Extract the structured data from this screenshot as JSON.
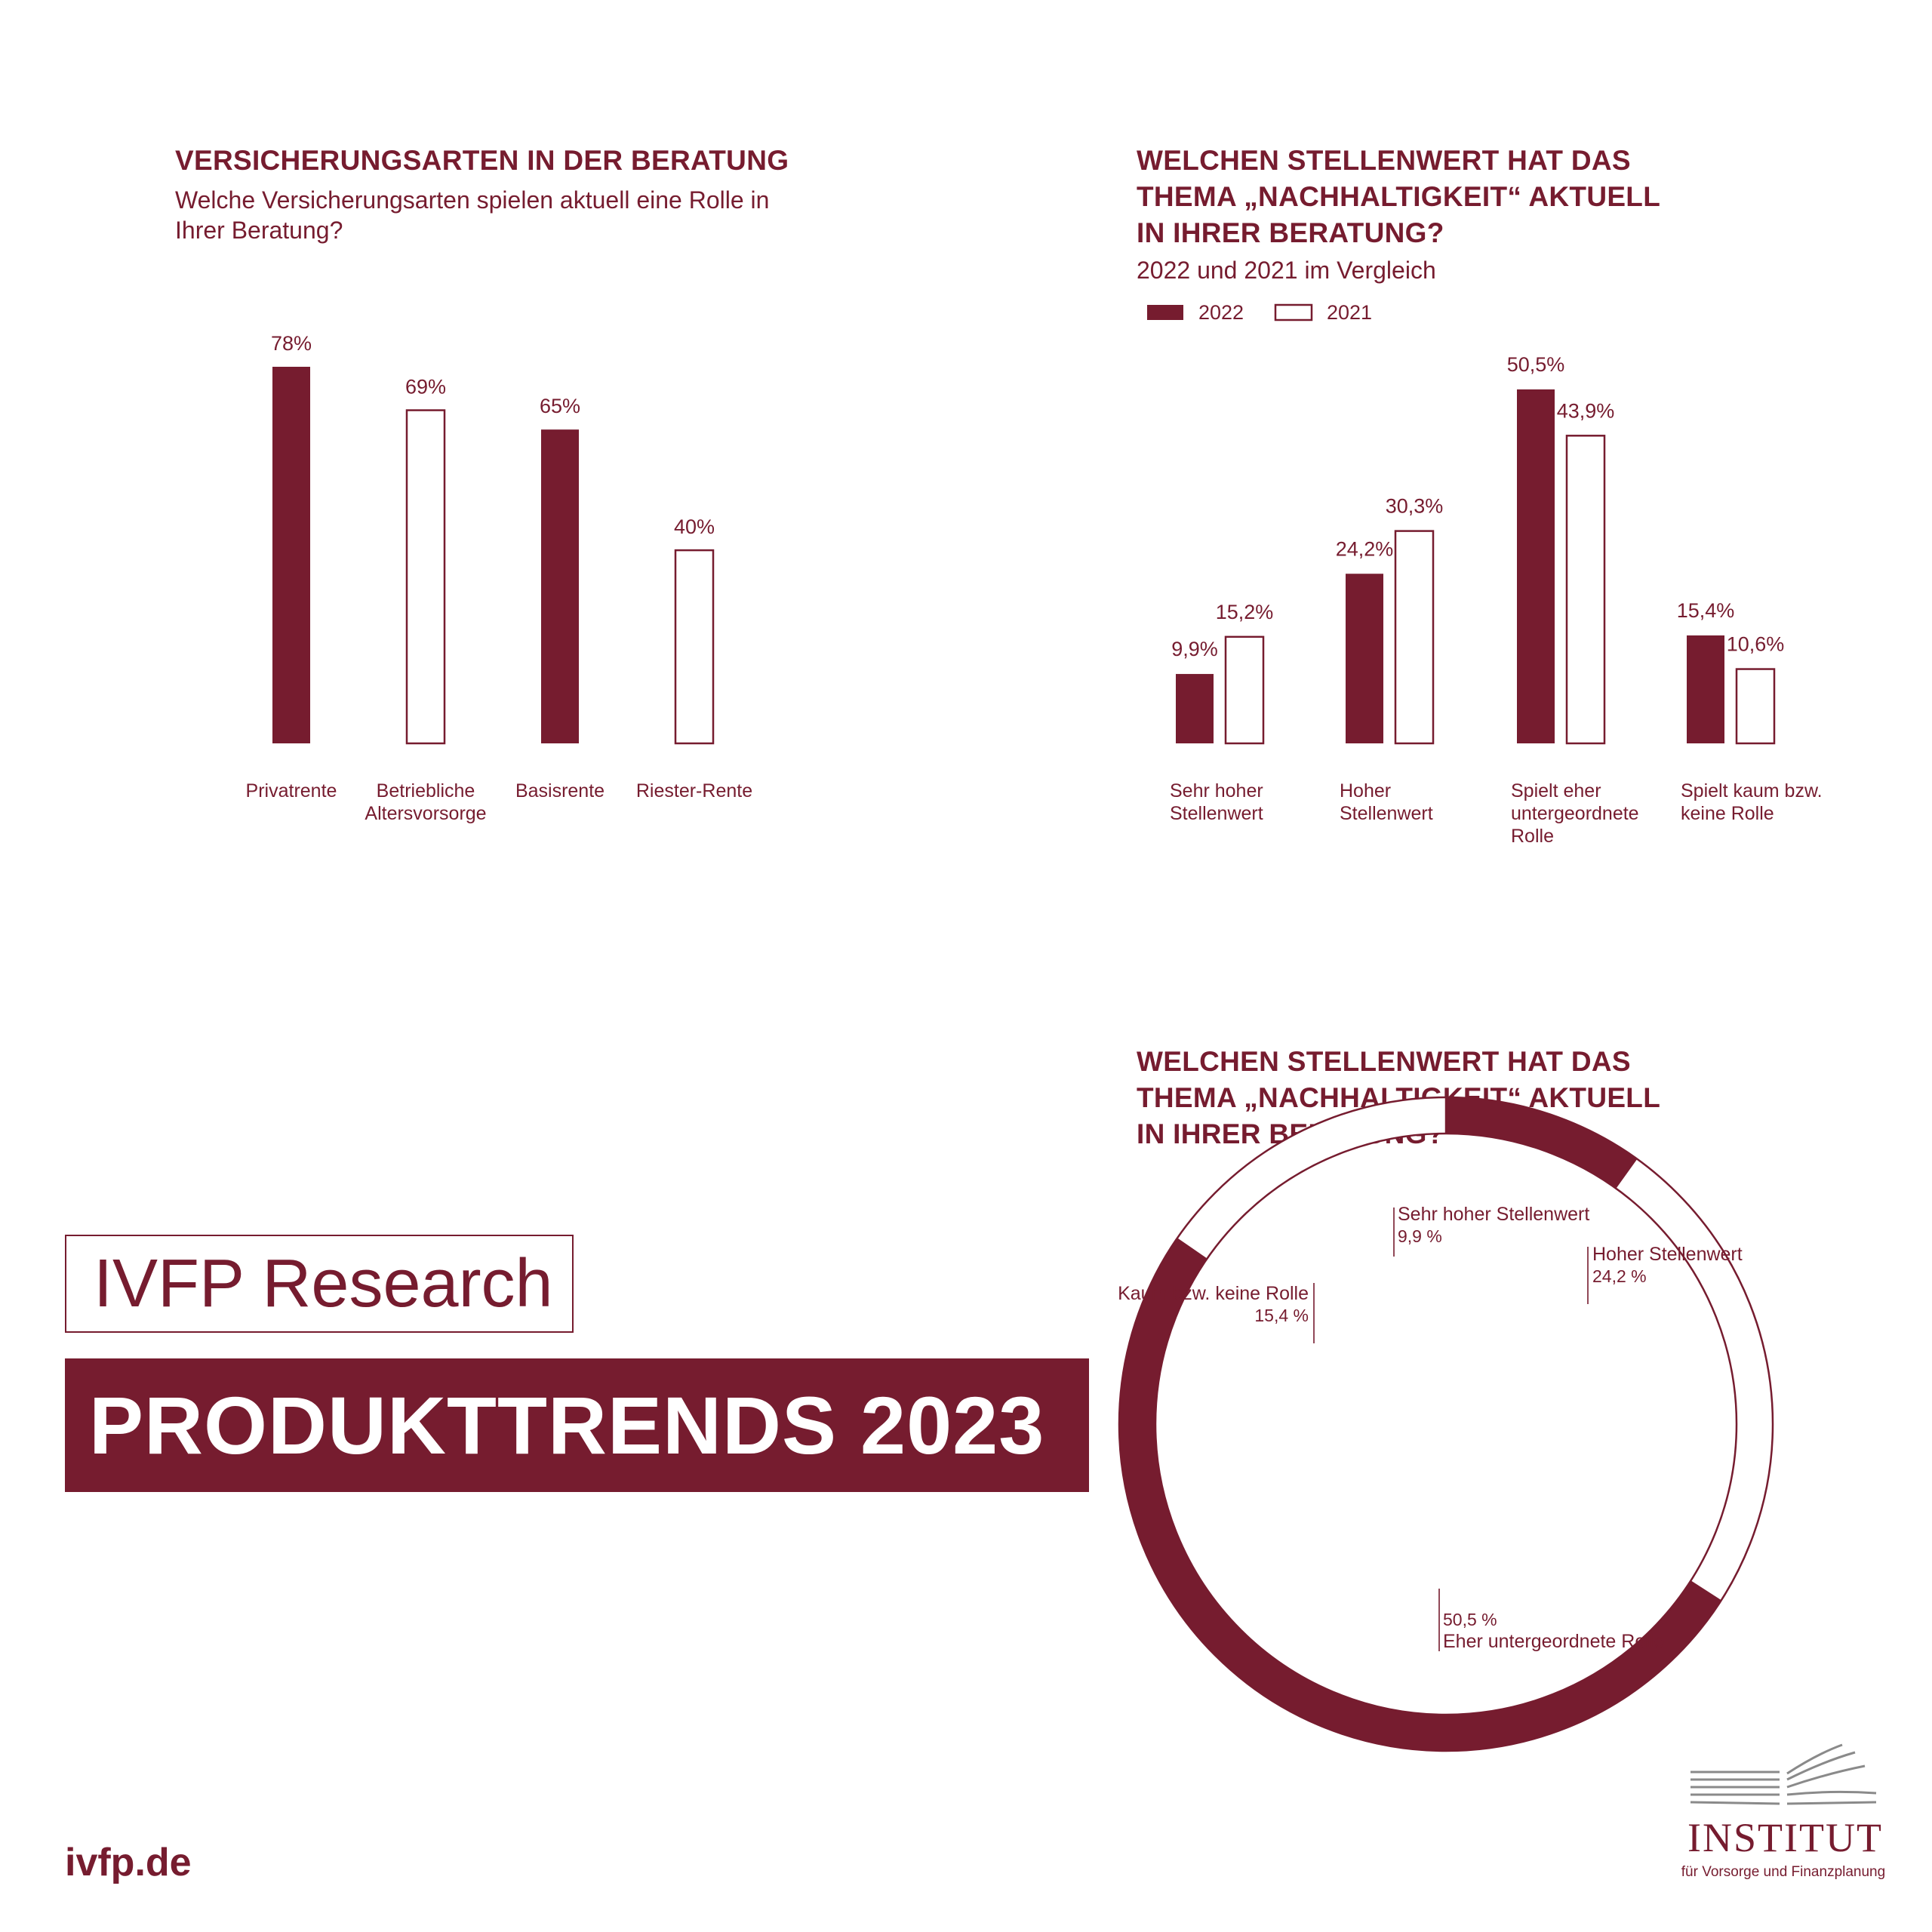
{
  "colors": {
    "accent": "#761c2f",
    "background": "#ffffff"
  },
  "chart1": {
    "title": "VERSICHERUNGSARTEN IN DER BERATUNG",
    "subtitle_lines": [
      "Welche Versicherungsarten spielen aktuell eine Rolle in",
      "Ihrer Beratung?"
    ]
  },
  "chart2": {
    "title_lines": [
      "WELCHEN STELLENWERT HAT DAS",
      "THEMA „NACHHALTIGKEIT“ AKTUELL",
      "IN IHRER BERATUNG?"
    ],
    "subtitle": "2022 und 2021 im Vergleich"
  },
  "chart3": {
    "title_lines": [
      "WELCHEN STELLENWERT HAT DAS",
      "THEMA „NACHHALTIGKEIT“ AKTUELL",
      "IN IHRER BERATUNG?"
    ]
  },
  "chart_data": [
    {
      "type": "bar",
      "categories": [
        [
          "Privatrente"
        ],
        [
          "Betriebliche",
          "Altersvorsorge"
        ],
        [
          "Basisrente"
        ],
        [
          "Riester-Rente"
        ]
      ],
      "values": [
        78,
        69,
        65,
        40
      ],
      "value_labels": [
        "78%",
        "69%",
        "65%",
        "40%"
      ],
      "styles": [
        "filled",
        "outline",
        "filled",
        "outline"
      ],
      "ylim": [
        0,
        80
      ]
    },
    {
      "type": "bar",
      "categories": [
        [
          "Sehr hoher",
          "Stellenwert"
        ],
        [
          "Hoher",
          "Stellenwert"
        ],
        [
          "Spielt eher",
          "untergeordnete",
          "Rolle"
        ],
        [
          "Spielt kaum bzw.",
          "keine Rolle"
        ]
      ],
      "series": [
        {
          "name": "2022",
          "style": "filled",
          "values": [
            9.9,
            24.2,
            50.5,
            15.4
          ],
          "labels": [
            "9,9%",
            "24,2%",
            "50,5%",
            "15,4%"
          ]
        },
        {
          "name": "2021",
          "style": "outline",
          "values": [
            15.2,
            30.3,
            43.9,
            10.6
          ],
          "labels": [
            "15,2%",
            "30,3%",
            "43,9%",
            "10,6%"
          ]
        }
      ],
      "legend": "top-left",
      "ylim": [
        0,
        52
      ]
    },
    {
      "type": "pie",
      "donut": true,
      "slices": [
        {
          "label": "Sehr hoher Stellenwert",
          "value": 9.9,
          "value_label": "9,9 %",
          "style": "filled"
        },
        {
          "label": "Hoher Stellenwert",
          "value": 24.2,
          "value_label": "24,2 %",
          "style": "outline"
        },
        {
          "label": "Eher untergeordnete Rolle",
          "value": 50.5,
          "value_label": "50,5 %",
          "style": "filled"
        },
        {
          "label": "Kaum bzw. keine Rolle",
          "value": 15.4,
          "value_label": "15,4 %",
          "style": "outline"
        }
      ]
    }
  ],
  "brand": {
    "research": "IVFP Research",
    "banner": "PRODUKTTRENDS 2023",
    "website": "ivfp.de",
    "logo_word": "INSTITUT",
    "logo_sub": "für Vorsorge und Finanzplanung"
  }
}
